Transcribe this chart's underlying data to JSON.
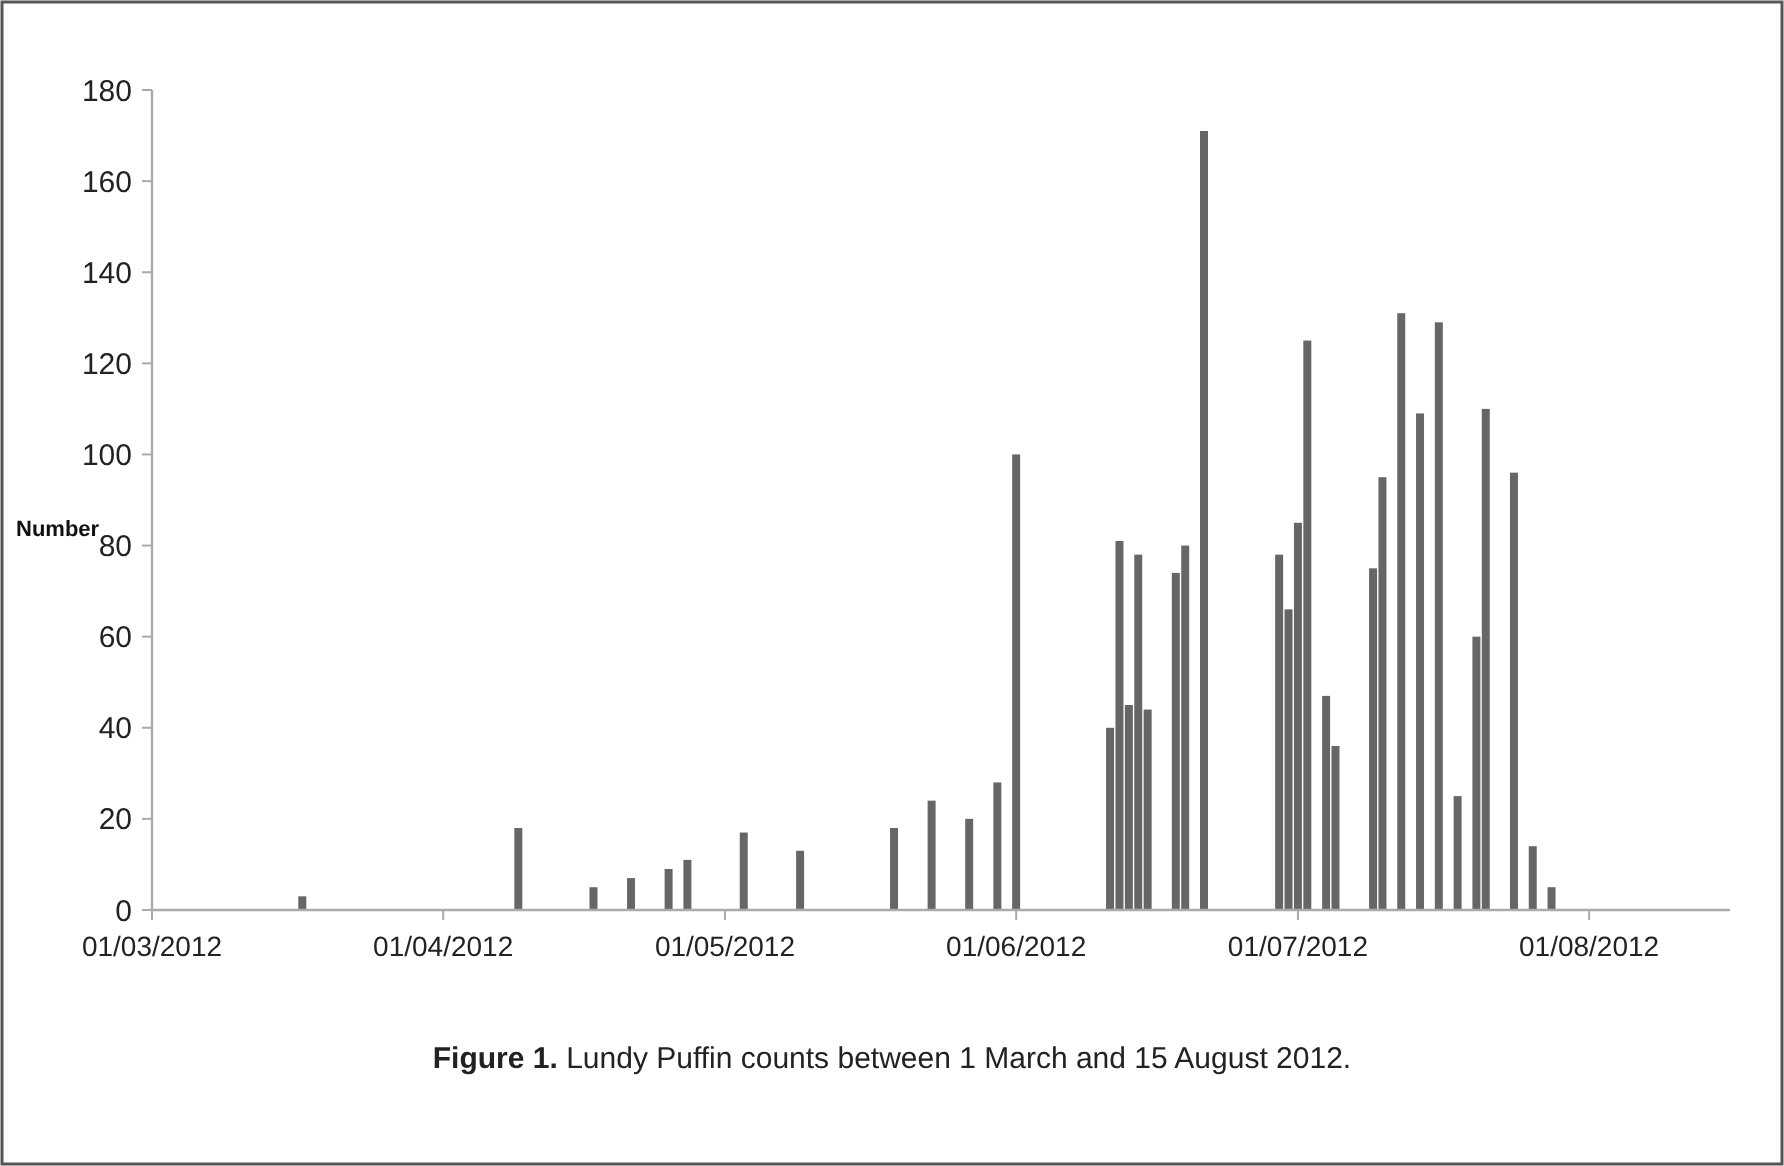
{
  "chart_data": {
    "type": "bar",
    "title": "Figure 1.",
    "subtitle": "Lundy Puffin counts between 1 March and 15 August 2012.",
    "ylabel": "Number",
    "color": "#666666",
    "x": [
      "2012-03-17",
      "2012-04-09",
      "2012-04-17",
      "2012-04-21",
      "2012-04-25",
      "2012-04-27",
      "2012-05-03",
      "2012-05-09",
      "2012-05-19",
      "2012-05-23",
      "2012-05-27",
      "2012-05-30",
      "2012-06-01",
      "2012-06-11",
      "2012-06-12",
      "2012-06-13",
      "2012-06-14",
      "2012-06-15",
      "2012-06-18",
      "2012-06-19",
      "2012-06-21",
      "2012-06-29",
      "2012-06-30",
      "2012-07-01",
      "2012-07-02",
      "2012-07-04",
      "2012-07-05",
      "2012-07-09",
      "2012-07-10",
      "2012-07-12",
      "2012-07-14",
      "2012-07-16",
      "2012-07-18",
      "2012-07-20",
      "2012-07-21",
      "2012-07-24",
      "2012-07-26",
      "2012-07-28"
    ],
    "values": [
      3,
      18,
      5,
      7,
      9,
      11,
      17,
      13,
      18,
      24,
      20,
      28,
      100,
      40,
      81,
      45,
      78,
      44,
      74,
      80,
      171,
      78,
      66,
      85,
      125,
      47,
      36,
      75,
      95,
      131,
      109,
      129,
      25,
      60,
      110,
      96,
      14,
      5
    ],
    "xlim": [
      "2012-03-01",
      "2012-08-16"
    ],
    "xticks": [
      {
        "value": "2012-03-01",
        "label": "01/03/2012"
      },
      {
        "value": "2012-04-01",
        "label": "01/04/2012"
      },
      {
        "value": "2012-05-01",
        "label": "01/05/2012"
      },
      {
        "value": "2012-06-01",
        "label": "01/06/2012"
      },
      {
        "value": "2012-07-01",
        "label": "01/07/2012"
      },
      {
        "value": "2012-08-01",
        "label": "01/08/2012"
      }
    ],
    "ylim": [
      0,
      180
    ],
    "yticks": [
      0,
      20,
      40,
      60,
      80,
      100,
      120,
      140,
      160,
      180
    ]
  }
}
